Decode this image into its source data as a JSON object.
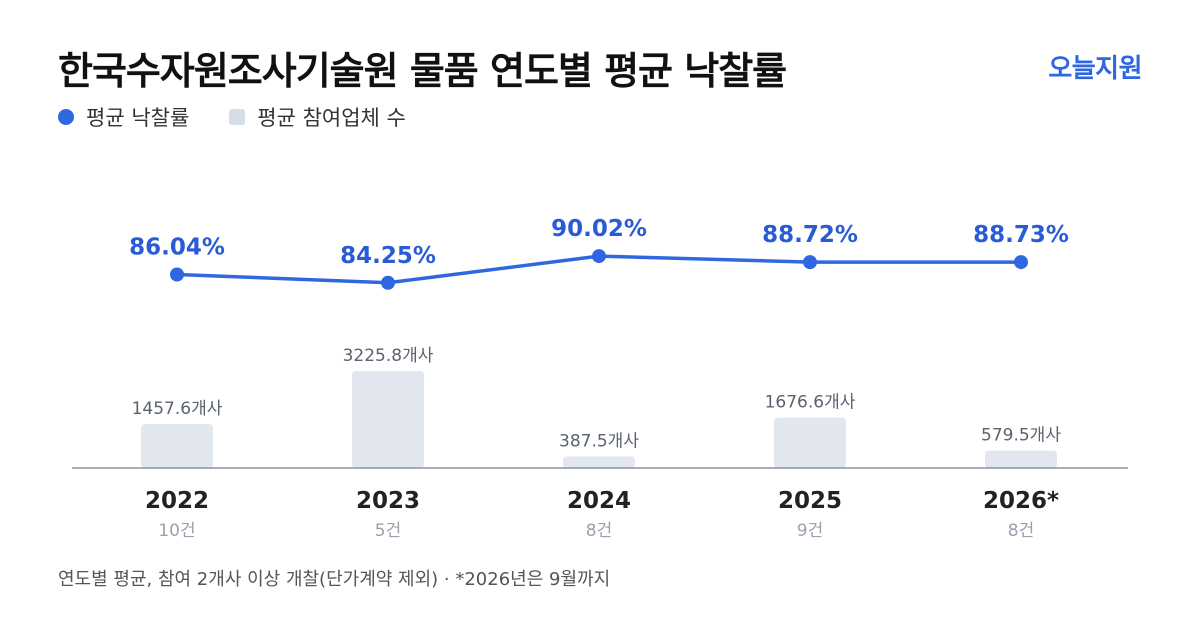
{
  "header": {
    "title": "한국수자원조사기술원 물품 연도별 평균 낙찰률",
    "brand": "오늘지원"
  },
  "legend": {
    "rate_label": "평균 낙찰률",
    "count_label": "평균 참여업체 수"
  },
  "colors": {
    "line": "#2f67e0",
    "bar": "#e2e7ef",
    "axis": "#8a93a3",
    "rate_label": "#2a5bd7",
    "count_label": "#5a6270",
    "year": "#222222",
    "sub": "#9aa1ad"
  },
  "chart_data": {
    "type": "bar",
    "categories": [
      "2022",
      "2023",
      "2024",
      "2025",
      "2026*"
    ],
    "sublabels": [
      "10건",
      "5건",
      "8건",
      "9건",
      "8건"
    ],
    "series": [
      {
        "name": "평균 낙찰률",
        "kind": "line",
        "values": [
          86.04,
          84.25,
          90.02,
          88.72,
          88.73
        ],
        "labels": [
          "86.04%",
          "84.25%",
          "90.02%",
          "88.72%",
          "88.73%"
        ]
      },
      {
        "name": "평균 참여업체 수",
        "kind": "bar",
        "values": [
          1457.6,
          3225.8,
          387.5,
          1676.6,
          579.5
        ],
        "labels": [
          "1457.6개사",
          "3225.8개사",
          "387.5개사",
          "1676.6개사",
          "579.5개사"
        ]
      }
    ]
  },
  "footnote": "연도별 평균, 참여 2개사 이상 개찰(단가계약 제외) · *2026년은 9월까지"
}
